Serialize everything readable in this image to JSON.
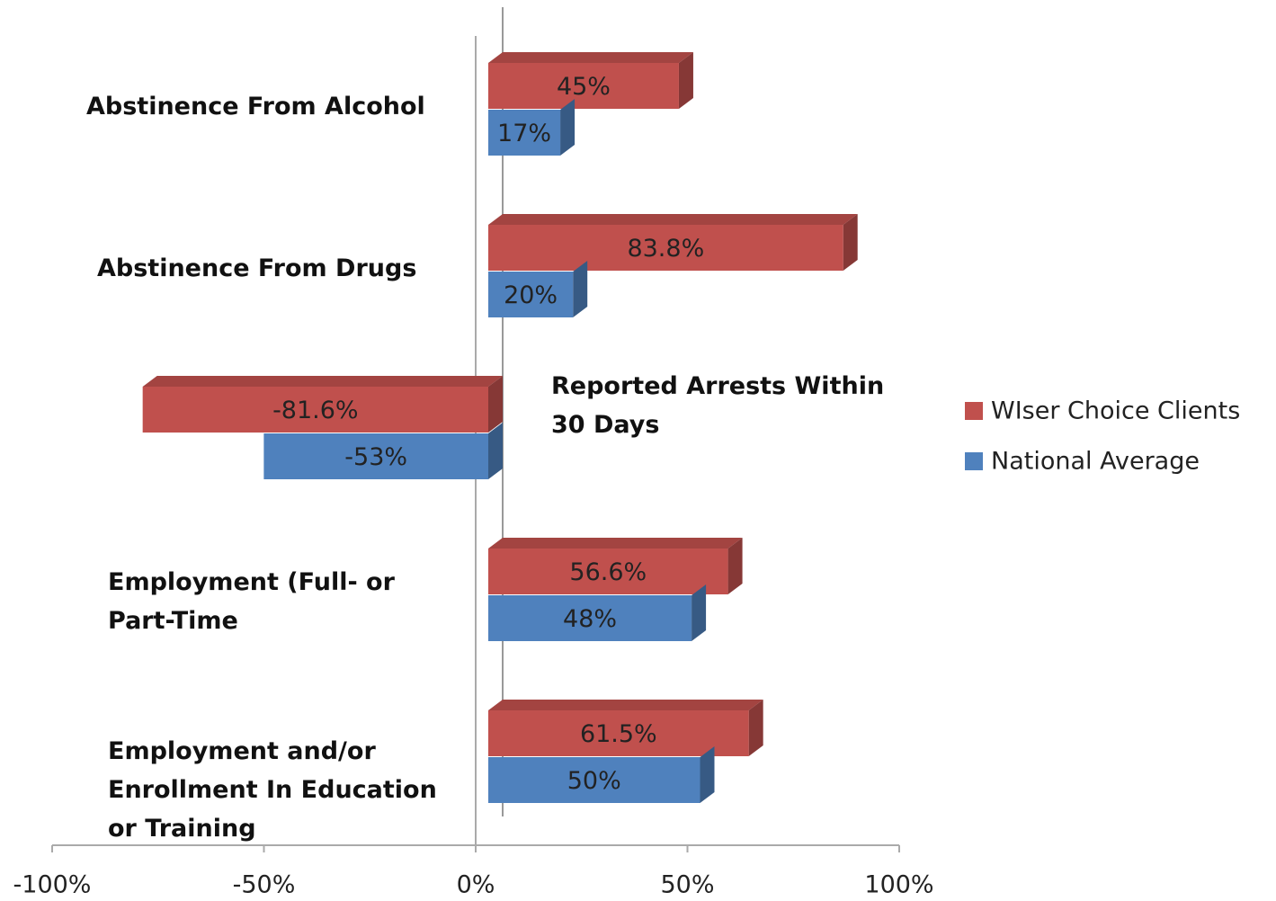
{
  "chart_data": {
    "type": "bar3d_horizontal",
    "categories": [
      "Abstinence From Alcohol",
      "Abstinence From Drugs",
      "Reported Arrests Within 30 Days",
      "Employment (Full- or Part-Time",
      "Employment and/or Enrollment In Education or Training"
    ],
    "series": [
      {
        "name": "WIser Choice Clients",
        "color": "#c0504d",
        "values": [
          45,
          83.8,
          -81.6,
          56.6,
          61.5
        ],
        "value_labels": [
          "45%",
          "83.8%",
          "-81.6%",
          "56.6%",
          "61.5%"
        ]
      },
      {
        "name": "National Average",
        "color": "#4f81bd",
        "values": [
          17,
          20,
          -53,
          48,
          50
        ],
        "value_labels": [
          "17%",
          "20%",
          "-53%",
          "48%",
          "50%"
        ]
      }
    ],
    "xlim": [
      -100,
      100
    ],
    "xticks": [
      {
        "value": -100,
        "label": "-100%"
      },
      {
        "value": -50,
        "label": "-50%"
      },
      {
        "value": 0,
        "label": "0%"
      },
      {
        "value": 50,
        "label": "50%"
      },
      {
        "value": 100,
        "label": "100%"
      }
    ],
    "legend": "right"
  }
}
